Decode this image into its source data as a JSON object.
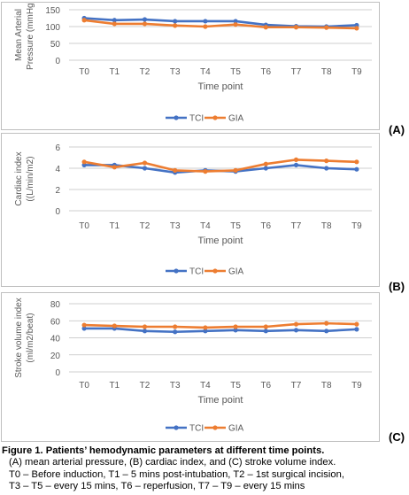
{
  "figure": {
    "caption_title": "Figure 1. Patients’ hemodynamic parameters at different time points.",
    "caption_lines": [
      "(A)  mean arterial pressure, (B) cardiac index, and (C) stroke volume index.",
      "T0 – Before induction, T1 – 5 mins post-intubation, T2 – 1st surgical incision,",
      "T3 – T5 – every 15 mins, T6 – reperfusion, T7 – T9 – every 15 mins"
    ]
  },
  "colors": {
    "TCI": "#4472C4",
    "GIA": "#ED7D31",
    "axis": "#bfbfbf",
    "text": "#595959"
  },
  "chart_data": [
    {
      "panel_label": "(A)",
      "type": "line",
      "categories": [
        "T0",
        "T1",
        "T2",
        "T3",
        "T4",
        "T5",
        "T6",
        "T7",
        "T8",
        "T9"
      ],
      "ylabel": [
        "Mean Arterial",
        "Pressure (mmHg)"
      ],
      "xlabel": "Time point",
      "ylim": [
        0,
        150
      ],
      "yticks": [
        0,
        50,
        100,
        150
      ],
      "legend": "bottom",
      "series": [
        {
          "name": "TCI",
          "values": [
            125,
            119,
            121,
            116,
            116,
            116,
            105,
            101,
            100,
            104
          ]
        },
        {
          "name": "GIA",
          "values": [
            119,
            108,
            108,
            103,
            100,
            106,
            98,
            98,
            97,
            95
          ]
        }
      ]
    },
    {
      "panel_label": "(B)",
      "type": "line",
      "categories": [
        "T0",
        "T1",
        "T2",
        "T3",
        "T4",
        "T5",
        "T6",
        "T7",
        "T8",
        "T9"
      ],
      "ylabel": [
        "Cardiac index",
        "((L/min/m2)"
      ],
      "xlabel": "Time point",
      "ylim": [
        0,
        6
      ],
      "yticks": [
        0,
        2,
        4,
        6
      ],
      "legend": "bottom",
      "series": [
        {
          "name": "TCI",
          "values": [
            4.3,
            4.3,
            4.0,
            3.6,
            3.8,
            3.7,
            4.0,
            4.3,
            4.0,
            3.9
          ]
        },
        {
          "name": "GIA",
          "values": [
            4.6,
            4.1,
            4.5,
            3.8,
            3.7,
            3.8,
            4.4,
            4.8,
            4.7,
            4.6
          ]
        }
      ]
    },
    {
      "panel_label": "(C)",
      "type": "line",
      "categories": [
        "T0",
        "T1",
        "T2",
        "T3",
        "T4",
        "T5",
        "T6",
        "T7",
        "T8",
        "T9"
      ],
      "ylabel": [
        "Stroke volume index",
        "(ml/m2/beat)"
      ],
      "xlabel": "Time point",
      "ylim": [
        0,
        80
      ],
      "yticks": [
        0,
        20,
        40,
        60,
        80
      ],
      "legend": "bottom",
      "series": [
        {
          "name": "TCI",
          "values": [
            51,
            51,
            48,
            47,
            48,
            49,
            48,
            49,
            48,
            50
          ]
        },
        {
          "name": "GIA",
          "values": [
            55,
            54,
            53,
            53,
            52,
            53,
            53,
            56,
            57,
            56
          ]
        }
      ]
    }
  ]
}
